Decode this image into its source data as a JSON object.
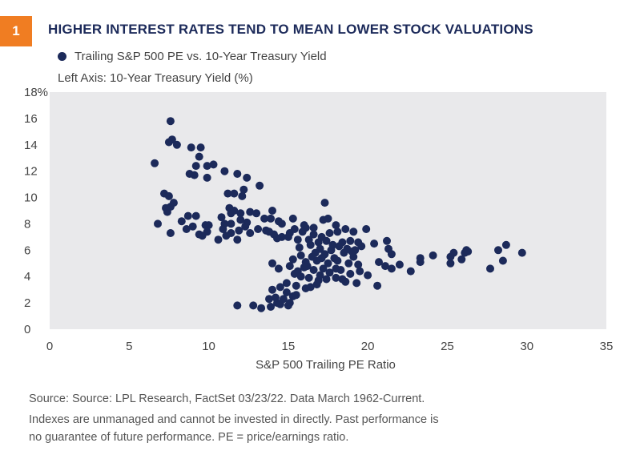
{
  "header": {
    "badge": "1",
    "title": "HIGHER INTEREST RATES TEND TO MEAN LOWER STOCK VALUATIONS"
  },
  "legend": {
    "label": "Trailing S&P 500 PE vs. 10-Year Treasury Yield",
    "color": "#1c2a5a"
  },
  "left_axis_note": "Left Axis: 10-Year Treasury Yield (%)",
  "footer": {
    "source": "Source: Source: LPL Research, FactSet  03/23/22. Data March 1962-Current.",
    "line2": "Indexes are unmanaged and cannot be invested in directly. Past performance is",
    "line3": "no guarantee of future performance. PE = price/earnings ratio."
  },
  "chart_data": {
    "type": "scatter",
    "title": "HIGHER INTEREST RATES TEND TO MEAN LOWER STOCK VALUATIONS",
    "xlabel": "S&P 500 Trailing PE Ratio",
    "ylabel": "Left Axis: 10-Year Treasury Yield (%)",
    "xlim": [
      0,
      35
    ],
    "ylim": [
      0,
      18
    ],
    "x_ticks": [
      "0",
      "5",
      "10",
      "15",
      "20",
      "25",
      "30",
      "35"
    ],
    "y_ticks": [
      "0",
      "2",
      "4",
      "6",
      "8",
      "10",
      "12",
      "14",
      "16",
      "18%"
    ],
    "grid": false,
    "plot_background": "#e9e9eb",
    "point_color": "#1c2a5a",
    "series": [
      {
        "name": "Trailing S&P 500 PE vs. 10-Year Treasury Yield",
        "points": [
          [
            7.6,
            15.8
          ],
          [
            7.5,
            14.2
          ],
          [
            7.7,
            14.4
          ],
          [
            8.0,
            14.0
          ],
          [
            8.9,
            13.8
          ],
          [
            9.5,
            13.8
          ],
          [
            9.4,
            13.1
          ],
          [
            6.6,
            12.6
          ],
          [
            9.2,
            12.4
          ],
          [
            9.9,
            12.4
          ],
          [
            10.3,
            12.5
          ],
          [
            11.0,
            12.0
          ],
          [
            8.8,
            11.8
          ],
          [
            9.1,
            11.7
          ],
          [
            9.9,
            11.5
          ],
          [
            11.8,
            11.8
          ],
          [
            12.4,
            11.5
          ],
          [
            12.2,
            10.6
          ],
          [
            13.2,
            10.9
          ],
          [
            11.2,
            10.3
          ],
          [
            11.6,
            10.3
          ],
          [
            7.2,
            10.3
          ],
          [
            7.5,
            10.1
          ],
          [
            12.1,
            10.1
          ],
          [
            7.8,
            9.6
          ],
          [
            7.3,
            9.2
          ],
          [
            7.6,
            9.3
          ],
          [
            7.4,
            8.9
          ],
          [
            11.3,
            9.2
          ],
          [
            11.4,
            8.8
          ],
          [
            12.0,
            8.8
          ],
          [
            12.6,
            8.9
          ],
          [
            13.0,
            8.8
          ],
          [
            11.6,
            9.0
          ],
          [
            10.8,
            8.5
          ],
          [
            8.7,
            8.6
          ],
          [
            9.2,
            8.6
          ],
          [
            8.3,
            8.2
          ],
          [
            6.8,
            8.0
          ],
          [
            9.0,
            7.8
          ],
          [
            9.8,
            7.9
          ],
          [
            10.0,
            7.9
          ],
          [
            11.0,
            8.0
          ],
          [
            11.4,
            8.0
          ],
          [
            12.0,
            8.3
          ],
          [
            12.4,
            8.1
          ],
          [
            13.5,
            8.4
          ],
          [
            13.9,
            8.4
          ],
          [
            14.0,
            9.0
          ],
          [
            14.4,
            8.2
          ],
          [
            14.6,
            8.0
          ],
          [
            15.3,
            8.4
          ],
          [
            16.0,
            7.9
          ],
          [
            16.6,
            7.7
          ],
          [
            17.3,
            9.6
          ],
          [
            17.2,
            8.3
          ],
          [
            17.5,
            8.4
          ],
          [
            18.0,
            7.9
          ],
          [
            18.6,
            7.6
          ],
          [
            19.1,
            7.4
          ],
          [
            19.9,
            7.6
          ],
          [
            8.6,
            7.6
          ],
          [
            9.4,
            7.2
          ],
          [
            9.9,
            7.4
          ],
          [
            10.9,
            7.6
          ],
          [
            11.4,
            7.3
          ],
          [
            11.9,
            7.5
          ],
          [
            12.3,
            7.8
          ],
          [
            13.1,
            7.6
          ],
          [
            13.6,
            7.5
          ],
          [
            14.1,
            7.2
          ],
          [
            14.6,
            7.0
          ],
          [
            15.1,
            7.3
          ],
          [
            15.4,
            7.6
          ],
          [
            15.9,
            7.4
          ],
          [
            16.1,
            7.7
          ],
          [
            16.6,
            7.2
          ],
          [
            17.1,
            7.0
          ],
          [
            17.6,
            7.3
          ],
          [
            18.1,
            7.4
          ],
          [
            7.6,
            7.3
          ],
          [
            9.6,
            7.1
          ],
          [
            11.1,
            7.1
          ],
          [
            12.6,
            7.3
          ],
          [
            14.3,
            6.9
          ],
          [
            10.6,
            6.8
          ],
          [
            11.8,
            6.8
          ],
          [
            13.8,
            7.4
          ],
          [
            15.0,
            7.0
          ],
          [
            15.6,
            6.8
          ],
          [
            16.3,
            6.8
          ],
          [
            16.9,
            6.6
          ],
          [
            17.4,
            6.7
          ],
          [
            17.8,
            6.4
          ],
          [
            18.4,
            6.6
          ],
          [
            18.9,
            6.7
          ],
          [
            19.4,
            6.6
          ],
          [
            20.4,
            6.5
          ],
          [
            21.2,
            6.7
          ],
          [
            15.7,
            6.2
          ],
          [
            16.4,
            6.4
          ],
          [
            17.0,
            6.1
          ],
          [
            17.7,
            6.0
          ],
          [
            18.2,
            6.3
          ],
          [
            18.7,
            6.1
          ],
          [
            19.2,
            6.0
          ],
          [
            19.6,
            6.3
          ],
          [
            21.3,
            6.1
          ],
          [
            21.5,
            5.7
          ],
          [
            23.3,
            5.4
          ],
          [
            24.1,
            5.6
          ],
          [
            25.4,
            5.8
          ],
          [
            26.3,
            5.9
          ],
          [
            28.7,
            6.4
          ],
          [
            29.7,
            5.8
          ],
          [
            28.2,
            6.0
          ],
          [
            26.1,
            5.8
          ],
          [
            25.2,
            5.5
          ],
          [
            15.8,
            5.6
          ],
          [
            16.5,
            5.5
          ],
          [
            17.3,
            5.7
          ],
          [
            17.9,
            5.4
          ],
          [
            18.5,
            5.8
          ],
          [
            19.1,
            5.5
          ],
          [
            15.3,
            5.3
          ],
          [
            16.1,
            5.1
          ],
          [
            16.8,
            5.2
          ],
          [
            17.5,
            5.0
          ],
          [
            18.1,
            5.2
          ],
          [
            18.8,
            5.0
          ],
          [
            19.4,
            4.9
          ],
          [
            20.7,
            5.1
          ],
          [
            21.1,
            4.8
          ],
          [
            22.0,
            4.9
          ],
          [
            23.3,
            5.1
          ],
          [
            25.2,
            5.0
          ],
          [
            25.9,
            5.3
          ],
          [
            27.7,
            4.6
          ],
          [
            28.5,
            5.2
          ],
          [
            26.2,
            6.0
          ],
          [
            14.0,
            5.0
          ],
          [
            14.4,
            4.6
          ],
          [
            15.1,
            4.8
          ],
          [
            15.6,
            4.4
          ],
          [
            16.0,
            4.7
          ],
          [
            16.6,
            4.5
          ],
          [
            17.2,
            4.6
          ],
          [
            17.6,
            4.3
          ],
          [
            18.3,
            4.5
          ],
          [
            18.9,
            4.2
          ],
          [
            19.5,
            4.4
          ],
          [
            20.0,
            4.1
          ],
          [
            21.5,
            4.6
          ],
          [
            22.7,
            4.4
          ],
          [
            15.8,
            4.0
          ],
          [
            16.3,
            3.9
          ],
          [
            16.9,
            3.7
          ],
          [
            17.4,
            3.8
          ],
          [
            18.0,
            3.9
          ],
          [
            18.6,
            3.6
          ],
          [
            19.3,
            3.5
          ],
          [
            20.6,
            3.3
          ],
          [
            14.9,
            3.5
          ],
          [
            15.5,
            3.3
          ],
          [
            16.1,
            3.1
          ],
          [
            16.8,
            3.4
          ],
          [
            14.0,
            3.0
          ],
          [
            14.5,
            3.2
          ],
          [
            14.9,
            2.8
          ],
          [
            15.3,
            2.5
          ],
          [
            15.5,
            2.6
          ],
          [
            13.8,
            2.3
          ],
          [
            14.3,
            2.0
          ],
          [
            14.7,
            2.3
          ],
          [
            15.0,
            1.8
          ],
          [
            13.3,
            1.6
          ],
          [
            13.9,
            1.7
          ],
          [
            11.8,
            1.8
          ],
          [
            12.8,
            1.8
          ],
          [
            14.5,
            1.9
          ],
          [
            15.1,
            2.0
          ],
          [
            14.2,
            2.4
          ],
          [
            16.4,
            3.2
          ],
          [
            16.2,
            4.8
          ],
          [
            17.0,
            4.1
          ],
          [
            19.0,
            5.9
          ],
          [
            18.0,
            4.6
          ],
          [
            16.7,
            5.8
          ],
          [
            18.4,
            3.8
          ],
          [
            17.1,
            5.4
          ],
          [
            15.4,
            4.2
          ]
        ]
      }
    ]
  }
}
